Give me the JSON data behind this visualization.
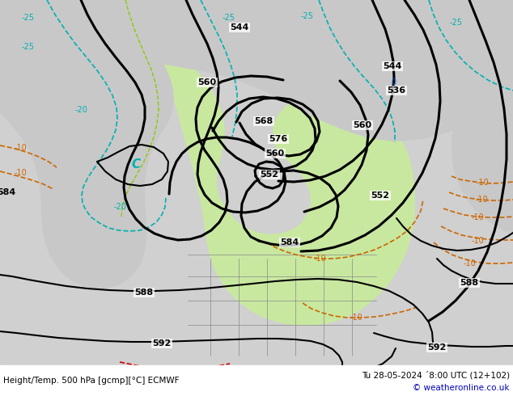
{
  "title_left": "Height/Temp. 500 hPa [gcmp][°C] ECMWF",
  "title_right": "Tu 28-05-2024 ´8:00 UTC (12+102)",
  "copyright": "© weatheronline.co.uk",
  "bg_color": "#d0d0d0",
  "ocean_color": "#d0d0d0",
  "green_color": "#c8e8a0",
  "gray_land_color": "#c8c8c8",
  "fig_width": 6.34,
  "fig_height": 4.9,
  "dpi": 100
}
